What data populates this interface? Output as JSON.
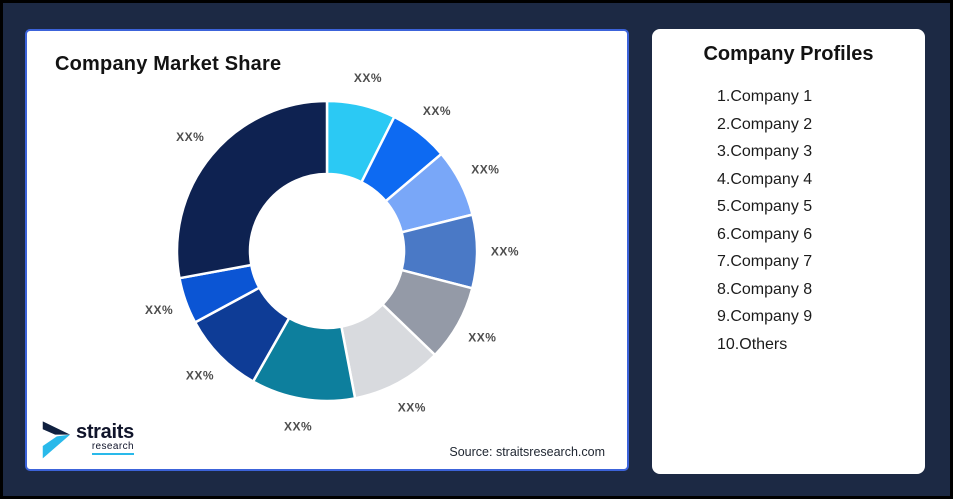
{
  "page": {
    "background": "#1c2944",
    "border_color": "#000000"
  },
  "chart_panel": {
    "title": "Company Market Share",
    "source": "Source: straitsresearch.com",
    "border_color": "#3c63da",
    "logo": {
      "name": "straits",
      "subtitle": "research",
      "icon": "straits-arrow-icon",
      "dark_color": "#10142a",
      "accent_color": "#29b9ea"
    }
  },
  "profiles_panel": {
    "heading": "Company Profiles",
    "items": [
      "1.Company 1",
      "2.Company 2",
      "3.Company 3",
      "4.Company 4",
      "5.Company 5",
      "6.Company 6",
      "7.Company 7",
      "8.Company 8",
      "9.Company 9",
      "10.Others"
    ]
  },
  "chart_data": {
    "type": "pie",
    "variant": "donut",
    "title": "Company Market Share",
    "label_text_all_segments": "XX%",
    "label_color": "#4d4d4d",
    "inner_radius_ratio": 0.51,
    "start_angle_deg": 0,
    "direction": "clockwise",
    "legend": "none",
    "segments": [
      {
        "name": "Company 1",
        "value": 7.4,
        "color": "#2bc9f4"
      },
      {
        "name": "Company 2",
        "value": 6.4,
        "color": "#0d6af2"
      },
      {
        "name": "Company 3",
        "value": 7.3,
        "color": "#79a7f8"
      },
      {
        "name": "Company 4",
        "value": 7.9,
        "color": "#4a79c6"
      },
      {
        "name": "Company 5",
        "value": 8.2,
        "color": "#949aa7"
      },
      {
        "name": "Company 6",
        "value": 9.8,
        "color": "#d8dade"
      },
      {
        "name": "Company 7",
        "value": 11.2,
        "color": "#0d7f9d"
      },
      {
        "name": "Company 8",
        "value": 8.9,
        "color": "#0e3c96"
      },
      {
        "name": "Company 9",
        "value": 5.0,
        "color": "#0b55d4"
      },
      {
        "name": "Others",
        "value": 27.9,
        "color": "#0e2251"
      }
    ]
  }
}
